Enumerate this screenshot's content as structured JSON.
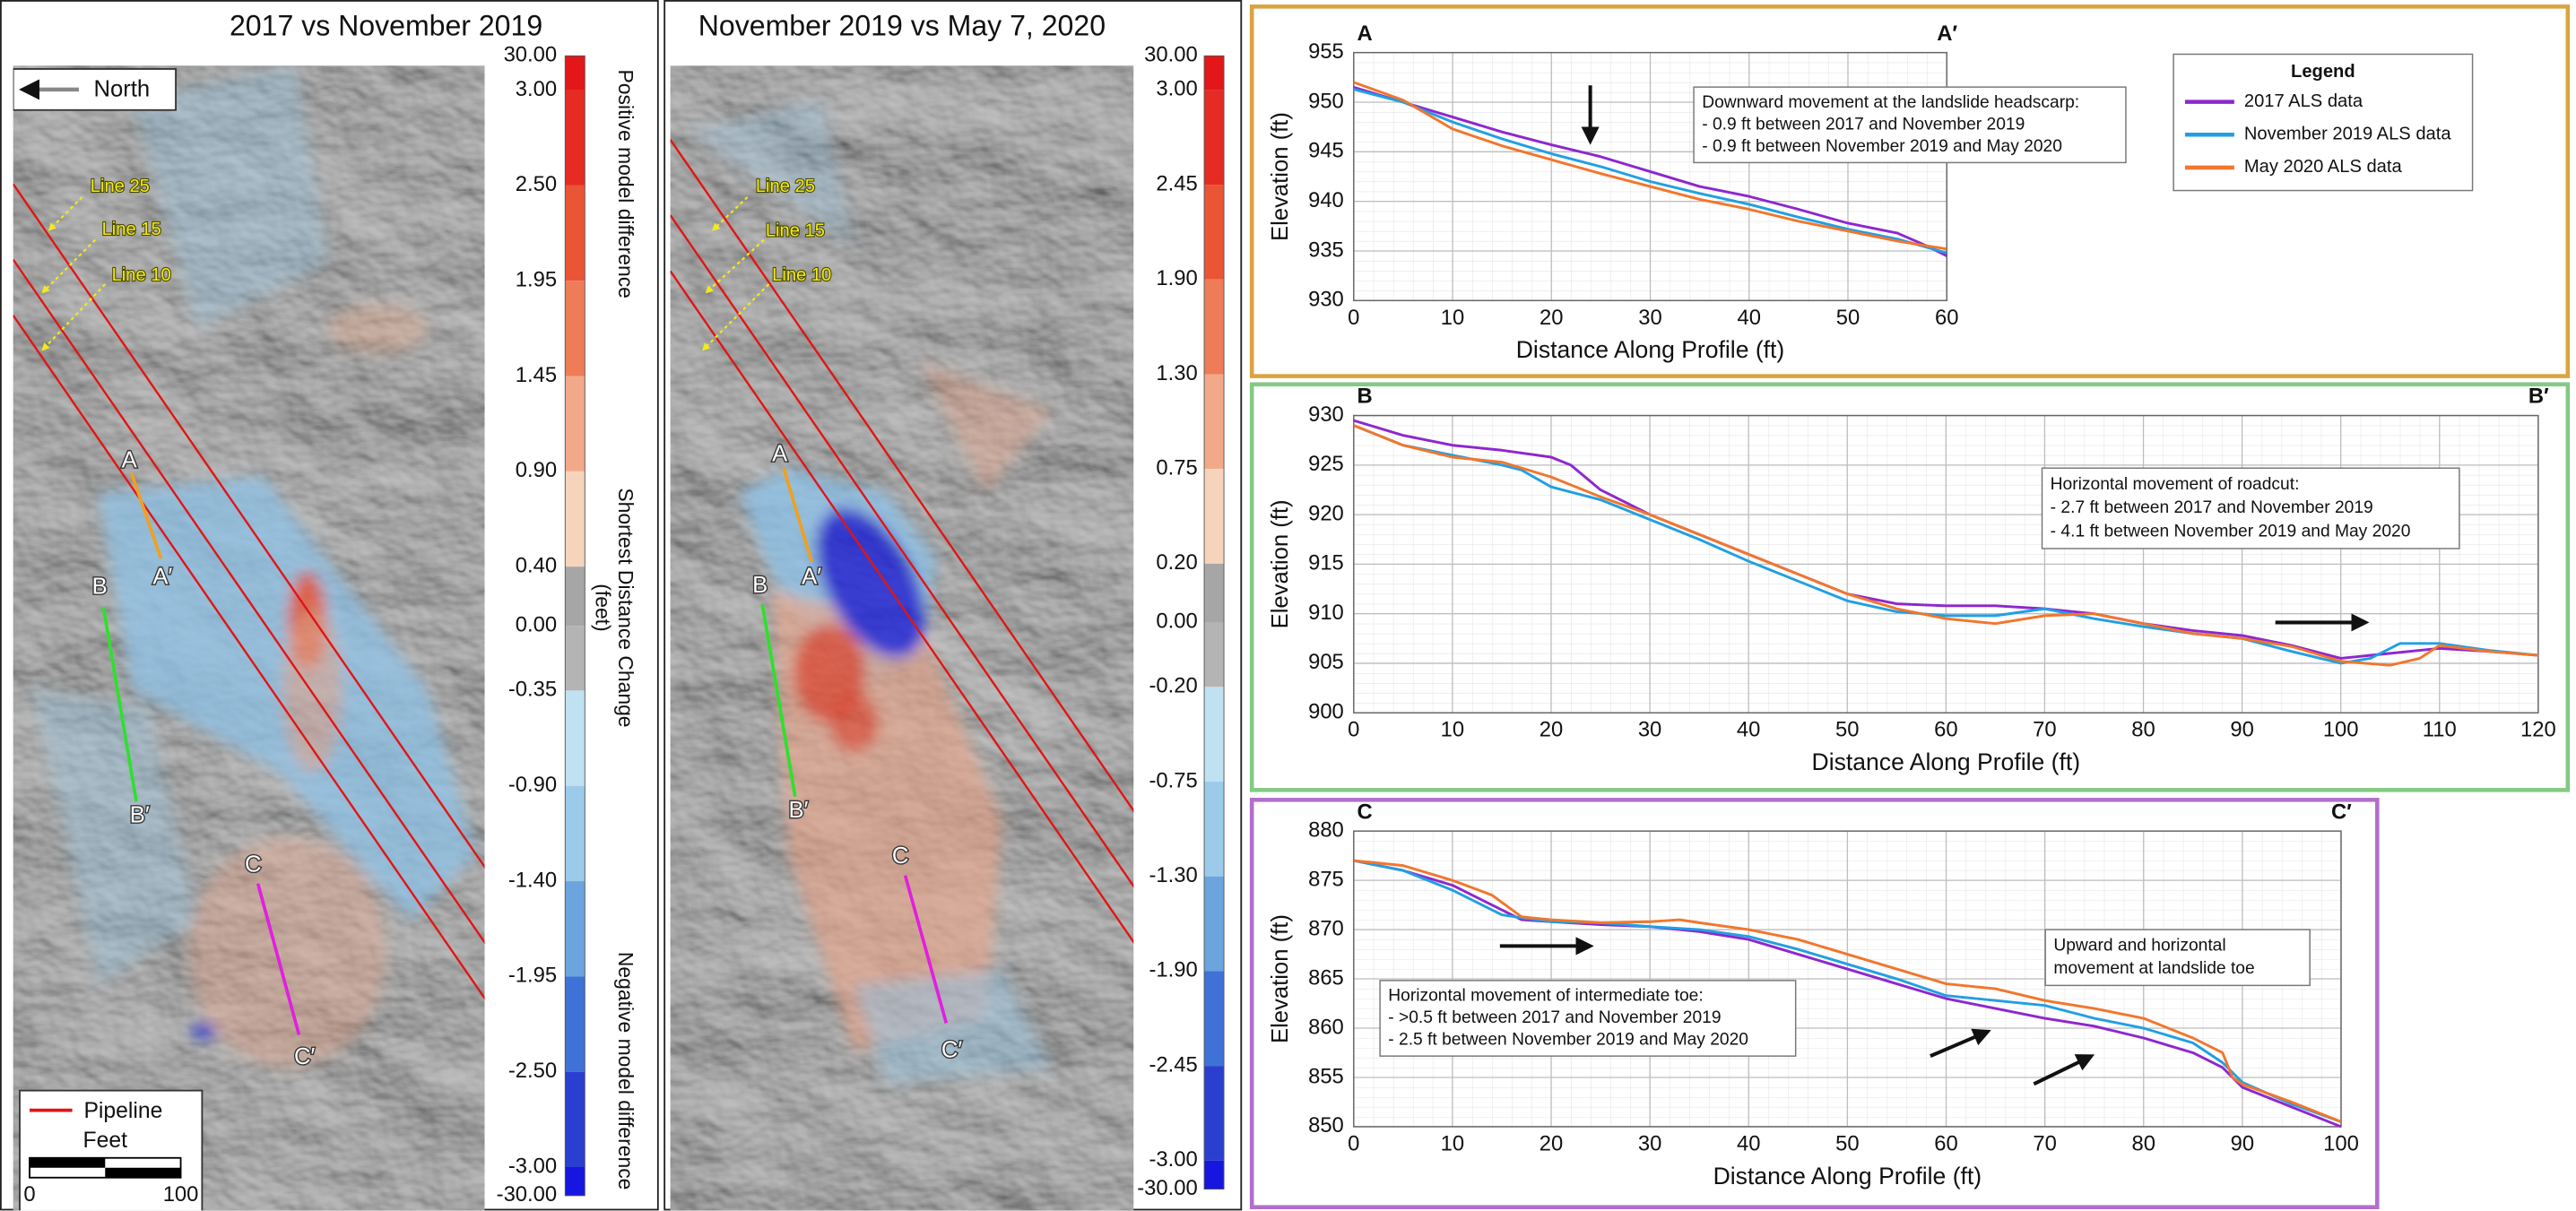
{
  "maps": [
    {
      "title": "2017 vs November 2019",
      "north": "North",
      "line_labels": [
        "Line 25",
        "Line 15",
        "Line 10"
      ],
      "profile_labels": [
        "A",
        "A′",
        "B",
        "B′",
        "C",
        "C′"
      ],
      "legend": {
        "pipeline": "Pipeline",
        "scale_title": "Feet",
        "scale_labels": [
          "0",
          "100"
        ]
      },
      "colorbar": {
        "labels": [
          "30.00",
          "3.00",
          "2.50",
          "1.95",
          "1.45",
          "0.90",
          "0.40",
          "0.00",
          "-0.35",
          "-0.90",
          "-1.40",
          "-1.95",
          "-2.50",
          "-3.00",
          "-30.00"
        ],
        "colors": [
          "#e3161a",
          "#e52b22",
          "#ea5535",
          "#ee7c58",
          "#f2a98a",
          "#f6d4bb",
          "#a6a6a6",
          "#b4b4b4",
          "#bfe1f2",
          "#9ccbea",
          "#6ca4de",
          "#3f72d6",
          "#2a3fcf",
          "#1616e0"
        ],
        "captions": [
          "Positive model difference",
          "Shortest Distance Change",
          "(feet)",
          "Negative model difference"
        ]
      }
    },
    {
      "title": "November 2019 vs May 7, 2020",
      "line_labels": [
        "Line 25",
        "Line 15",
        "Line 10"
      ],
      "profile_labels": [
        "A",
        "A′",
        "B",
        "B′",
        "C",
        "C′"
      ],
      "colorbar": {
        "labels": [
          "30.00",
          "3.00",
          "2.45",
          "1.90",
          "1.30",
          "0.75",
          "0.20",
          "0.00",
          "-0.20",
          "-0.75",
          "-1.30",
          "-1.90",
          "-2.45",
          "-3.00",
          "-30.00"
        ],
        "colors": [
          "#e3161a",
          "#e52b22",
          "#ea5535",
          "#ee7c58",
          "#f2a98a",
          "#f6d4bb",
          "#a6a6a6",
          "#b4b4b4",
          "#bfe1f2",
          "#9ccbea",
          "#6ca4de",
          "#3f72d6",
          "#2a3fcf",
          "#1616e0"
        ]
      }
    }
  ],
  "chart_data": [
    {
      "type": "line",
      "profile_start": "A",
      "profile_end": "A′",
      "x_label": "Distance Along Profile (ft)",
      "y_label": "Elevation (ft)",
      "xlim": [
        0,
        60
      ],
      "ylim": [
        930,
        955
      ],
      "xticks": [
        0,
        10,
        20,
        30,
        40,
        50,
        60
      ],
      "yticks": [
        930,
        935,
        940,
        945,
        950,
        955
      ],
      "grid": true,
      "minor_grid": true,
      "legend_title": "Legend",
      "series": [
        {
          "name": "2017 ALS data",
          "color": "#8e27cf",
          "x": [
            0,
            5,
            10,
            15,
            20,
            25,
            30,
            35,
            40,
            45,
            50,
            55,
            58,
            60
          ],
          "values": [
            951.5,
            950,
            948.5,
            947,
            945.7,
            944.5,
            943,
            941.5,
            940.5,
            939.2,
            937.8,
            936.8,
            935.5,
            934.5
          ]
        },
        {
          "name": "November 2019 ALS data",
          "color": "#229fe3",
          "x": [
            0,
            5,
            10,
            15,
            20,
            25,
            30,
            35,
            40,
            45,
            50,
            55,
            60
          ],
          "values": [
            951.3,
            950,
            948,
            946.3,
            944.8,
            943.5,
            942,
            940.8,
            939.7,
            938.4,
            937.2,
            936.2,
            934.8
          ]
        },
        {
          "name": "May 2020 ALS data",
          "color": "#f2762c",
          "x": [
            0,
            5,
            10,
            15,
            20,
            25,
            30,
            35,
            40,
            45,
            50,
            55,
            60
          ],
          "values": [
            952,
            950.2,
            947.3,
            945.6,
            944.2,
            942.8,
            941.5,
            940.2,
            939.2,
            938,
            937,
            936,
            935.2
          ]
        }
      ],
      "annotations": [
        [
          "Downward movement at the landslide headscarp:",
          "- 0.9 ft between 2017 and November 2019",
          "- 0.9 ft between November 2019 and May 2020"
        ]
      ]
    },
    {
      "type": "line",
      "profile_start": "B",
      "profile_end": "B′",
      "x_label": "Distance Along Profile (ft)",
      "y_label": "Elevation (ft)",
      "xlim": [
        0,
        120
      ],
      "ylim": [
        900,
        930
      ],
      "xticks": [
        0,
        10,
        20,
        30,
        40,
        50,
        60,
        70,
        80,
        90,
        100,
        110,
        120
      ],
      "yticks": [
        900,
        905,
        910,
        915,
        920,
        925,
        930
      ],
      "grid": true,
      "minor_grid": true,
      "series": [
        {
          "color": "#8e27cf",
          "x": [
            0,
            5,
            10,
            15,
            20,
            22,
            25,
            30,
            35,
            40,
            45,
            50,
            55,
            60,
            65,
            70,
            75,
            80,
            85,
            90,
            95,
            100,
            105,
            110,
            115,
            120
          ],
          "values": [
            929.5,
            928,
            927,
            926.5,
            925.8,
            925,
            922.5,
            920,
            918,
            916,
            914,
            912,
            911,
            910.8,
            910.8,
            910.5,
            910,
            909,
            908.3,
            907.8,
            906.8,
            905.5,
            906,
            906.5,
            906.2,
            905.8
          ]
        },
        {
          "color": "#229fe3",
          "x": [
            0,
            5,
            10,
            15,
            17,
            20,
            25,
            30,
            35,
            40,
            45,
            50,
            55,
            60,
            65,
            70,
            75,
            80,
            85,
            90,
            95,
            100,
            103,
            106,
            110,
            115,
            120
          ],
          "values": [
            929,
            927,
            926,
            925,
            924.5,
            922.8,
            921.5,
            919.5,
            917.5,
            915.3,
            913.3,
            911.3,
            910.2,
            909.8,
            909.8,
            910.5,
            909.5,
            908.7,
            908,
            907.5,
            906.2,
            905,
            905.5,
            907,
            907,
            906.3,
            905.8
          ]
        },
        {
          "color": "#f2762c",
          "x": [
            0,
            5,
            10,
            15,
            20,
            25,
            30,
            35,
            40,
            45,
            50,
            55,
            60,
            65,
            70,
            75,
            80,
            85,
            90,
            95,
            100,
            105,
            108,
            110,
            115,
            120
          ],
          "values": [
            929,
            927,
            925.8,
            925.3,
            923.8,
            921.8,
            920,
            918,
            916,
            914,
            912,
            910.5,
            909.5,
            909,
            909.8,
            910,
            909,
            908,
            907.5,
            906.7,
            905.2,
            904.8,
            905.5,
            906.8,
            906.2,
            905.8
          ]
        }
      ],
      "annotations": [
        [
          "Horizontal movement of roadcut:",
          "- 2.7 ft between 2017 and November 2019",
          "- 4.1 ft between November 2019 and May 2020"
        ]
      ]
    },
    {
      "type": "line",
      "profile_start": "C",
      "profile_end": "C′",
      "x_label": "Distance Along Profile (ft)",
      "y_label": "Elevation (ft)",
      "xlim": [
        0,
        100
      ],
      "ylim": [
        850,
        880
      ],
      "xticks": [
        0,
        10,
        20,
        30,
        40,
        50,
        60,
        70,
        80,
        90,
        100
      ],
      "yticks": [
        850,
        855,
        860,
        865,
        870,
        875,
        880
      ],
      "grid": true,
      "minor_grid": true,
      "series": [
        {
          "color": "#8e27cf",
          "x": [
            0,
            5,
            10,
            15,
            17,
            20,
            25,
            30,
            35,
            40,
            45,
            50,
            55,
            60,
            65,
            70,
            75,
            80,
            85,
            88,
            90,
            95,
            100
          ],
          "values": [
            877,
            876,
            874.5,
            872,
            871,
            870.8,
            870.5,
            870.3,
            869.8,
            869,
            867.5,
            866,
            864.5,
            863,
            862,
            861,
            860.2,
            859,
            857.5,
            856,
            854,
            852,
            850
          ]
        },
        {
          "color": "#229fe3",
          "x": [
            0,
            5,
            10,
            15,
            17,
            20,
            25,
            30,
            35,
            40,
            45,
            50,
            55,
            60,
            65,
            70,
            75,
            80,
            85,
            88,
            90,
            95,
            100
          ],
          "values": [
            877,
            876,
            874,
            871.5,
            871.2,
            870.8,
            870.7,
            870.3,
            870,
            869.3,
            868,
            866.5,
            865,
            863.3,
            862.8,
            862.3,
            861,
            860,
            858.5,
            856.5,
            854.5,
            852.3,
            850.5
          ]
        },
        {
          "color": "#f2762c",
          "x": [
            0,
            5,
            10,
            14,
            17,
            20,
            25,
            30,
            33,
            35,
            40,
            45,
            50,
            55,
            60,
            65,
            70,
            75,
            80,
            85,
            88,
            89,
            90,
            95,
            100
          ],
          "values": [
            877,
            876.5,
            875,
            873.5,
            871.3,
            871,
            870.7,
            870.8,
            871,
            870.7,
            870,
            869,
            867.5,
            866,
            864.5,
            864,
            862.8,
            862,
            861,
            859,
            857.5,
            855,
            854.3,
            852.5,
            850.5
          ]
        }
      ],
      "annotations": [
        [
          "Horizontal movement of intermediate toe:",
          "- >0.5 ft between 2017 and November 2019",
          "- 2.5 ft between November 2019 and May 2020"
        ],
        [
          "Upward and horizontal",
          "movement at landslide toe"
        ]
      ]
    }
  ]
}
